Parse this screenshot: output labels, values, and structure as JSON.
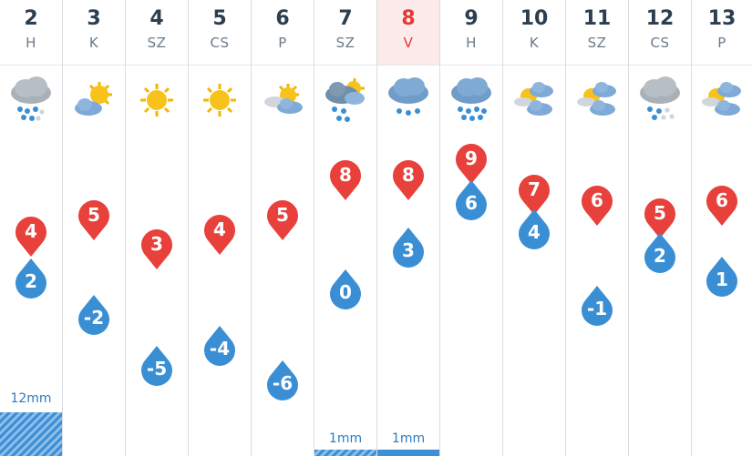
{
  "colors": {
    "max_pin": "#e8403a",
    "min_pin": "#3a8fd4",
    "precip_bar": "#3d8fd6",
    "today": "#e53935"
  },
  "days": [
    {
      "num": "2",
      "name": "H",
      "icon": "rain-cloud-icon",
      "max": "4",
      "min": "2",
      "precip": "12mm"
    },
    {
      "num": "3",
      "name": "K",
      "icon": "sun-cloud-icon",
      "max": "5",
      "min": "-2",
      "precip": ""
    },
    {
      "num": "4",
      "name": "SZ",
      "icon": "sun-icon",
      "max": "3",
      "min": "-5",
      "precip": ""
    },
    {
      "num": "5",
      "name": "CS",
      "icon": "sun-icon",
      "max": "4",
      "min": "-4",
      "precip": ""
    },
    {
      "num": "6",
      "name": "P",
      "icon": "cloud-sun-icon",
      "max": "5",
      "min": "-6",
      "precip": ""
    },
    {
      "num": "7",
      "name": "SZ",
      "icon": "sun-rain-cloud-icon",
      "max": "8",
      "min": "0",
      "precip": "1mm"
    },
    {
      "num": "8",
      "name": "V",
      "icon": "light-rain-cloud-icon",
      "max": "8",
      "min": "3",
      "precip": "1mm"
    },
    {
      "num": "9",
      "name": "H",
      "icon": "heavy-rain-cloud-icon",
      "max": "9",
      "min": "6",
      "precip": ""
    },
    {
      "num": "10",
      "name": "K",
      "icon": "partly-cloudy-icon",
      "max": "7",
      "min": "4",
      "precip": ""
    },
    {
      "num": "11",
      "name": "SZ",
      "icon": "partly-cloudy-icon",
      "max": "6",
      "min": "-1",
      "precip": ""
    },
    {
      "num": "12",
      "name": "CS",
      "icon": "sleet-cloud-icon",
      "max": "5",
      "min": "2",
      "precip": ""
    },
    {
      "num": "13",
      "name": "P",
      "icon": "partly-cloudy-icon",
      "max": "6",
      "min": "1",
      "precip": ""
    }
  ]
}
